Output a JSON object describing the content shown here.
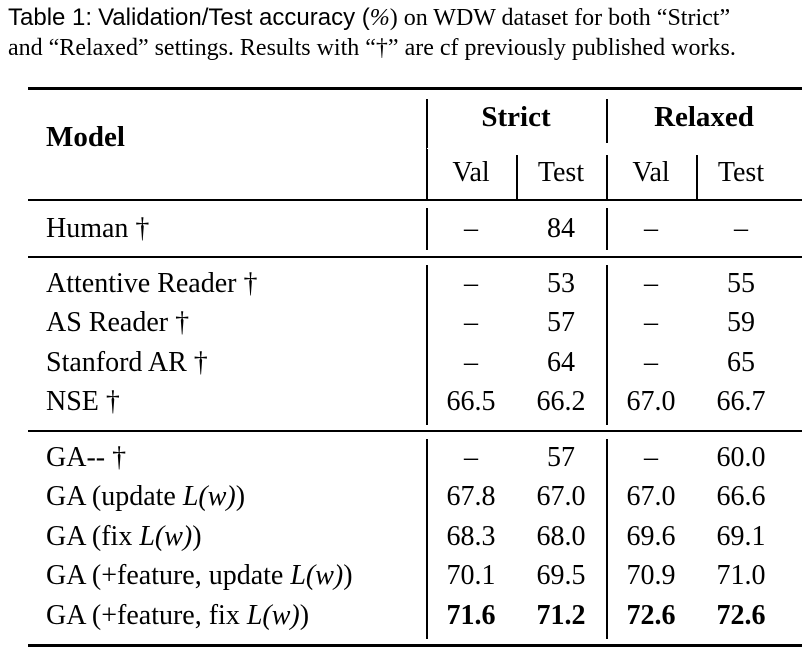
{
  "caption": {
    "label": "Table 1:",
    "text_a": "Validation/Test accuracy (",
    "pct": "%",
    "text_b": ") on WDW dataset for both “Strict”",
    "line2": "and “Relaxed” settings. Results with “†” are cf previously published works."
  },
  "header": {
    "model": "Model",
    "strict": "Strict",
    "relaxed": "Relaxed",
    "val": "Val",
    "test": "Test"
  },
  "rows": [
    {
      "name": "Human †",
      "values": [
        "–",
        "84",
        "–",
        "–"
      ]
    },
    {
      "name": "Attentive Reader †",
      "values": [
        "–",
        "53",
        "–",
        "55"
      ]
    },
    {
      "name": "AS Reader †",
      "values": [
        "–",
        "57",
        "–",
        "59"
      ]
    },
    {
      "name": "Stanford AR †",
      "values": [
        "–",
        "64",
        "–",
        "65"
      ]
    },
    {
      "name": "NSE †",
      "values": [
        "66.5",
        "66.2",
        "67.0",
        "66.7"
      ]
    },
    {
      "name": "GA-- †",
      "values": [
        "–",
        "57",
        "–",
        "60.0"
      ]
    },
    {
      "name_pre": "GA (update ",
      "name_math": "L(w)",
      "name_post": ")",
      "values": [
        "67.8",
        "67.0",
        "67.0",
        "66.6"
      ]
    },
    {
      "name_pre": "GA (fix ",
      "name_math": "L(w)",
      "name_post": ")",
      "values": [
        "68.3",
        "68.0",
        "69.6",
        "69.1"
      ]
    },
    {
      "name_pre": "GA (+feature, update ",
      "name_math": "L(w)",
      "name_post": ")",
      "values": [
        "70.1",
        "69.5",
        "70.9",
        "71.0"
      ]
    },
    {
      "name_pre": "GA (+feature, fix ",
      "name_math": "L(w)",
      "name_post": ")",
      "values": [
        "71.6",
        "71.2",
        "72.6",
        "72.6"
      ]
    }
  ]
}
